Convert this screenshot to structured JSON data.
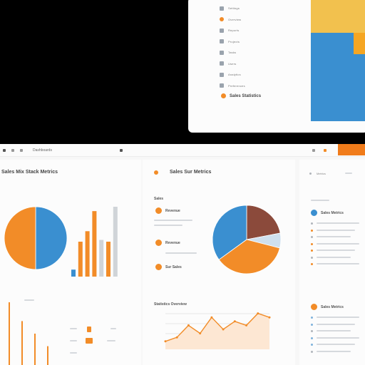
{
  "floating_window": {
    "menu_items": [
      {
        "icon": "gear-icon",
        "label": "Settings"
      },
      {
        "icon": "orange-circle-icon",
        "label": "Overview"
      },
      {
        "icon": "document-icon",
        "label": "Reports"
      },
      {
        "icon": "folder-icon",
        "label": "Projects"
      },
      {
        "icon": "list-icon",
        "label": "Tasks"
      },
      {
        "icon": "user-icon",
        "label": "Users"
      },
      {
        "icon": "chart-icon",
        "label": "Analytics"
      },
      {
        "icon": "gear-icon",
        "label": "Preferences"
      }
    ],
    "footer_label": "Sales Statistics"
  },
  "toolbar": {
    "left_label": "Dashboards",
    "menu_icon": "grid-icon"
  },
  "panels": {
    "left": {
      "title": "Sales Mix Stack Metrics"
    },
    "middle": {
      "title": "Sales Sur Metrics",
      "section_label": "Sales",
      "sub_title": "Revenue",
      "item_a": "Revenue",
      "item_b": "Sur Sales",
      "lower_title": "Statistics Overview"
    },
    "right": {
      "title": "Metrics",
      "sub_title": "Sales Metrics",
      "lower_title": "Sales Metrics"
    }
  },
  "colors": {
    "orange": "#f28c28",
    "blue": "#3a8fd0",
    "brown": "#8b4a3b",
    "light_blue": "#cfe0ee",
    "accent": "#f07b1a"
  },
  "chart_data": [
    {
      "type": "pie",
      "values": [
        50,
        50
      ],
      "colors": [
        "#3a8fd0",
        "#f28c28"
      ]
    },
    {
      "type": "bar",
      "series": [
        {
          "values": [
            8,
            40,
            52,
            75,
            42,
            40,
            80
          ]
        }
      ]
    },
    {
      "type": "pie",
      "values": [
        22,
        7,
        36,
        35
      ],
      "colors": [
        "#8b4a3b",
        "#cfe0ee",
        "#f28c28",
        "#3a8fd0"
      ]
    },
    {
      "type": "line",
      "values": [
        2,
        3,
        6,
        4,
        8,
        5,
        7,
        6,
        9,
        8
      ]
    },
    {
      "type": "bar",
      "values": [
        20,
        14,
        10,
        6
      ]
    }
  ]
}
